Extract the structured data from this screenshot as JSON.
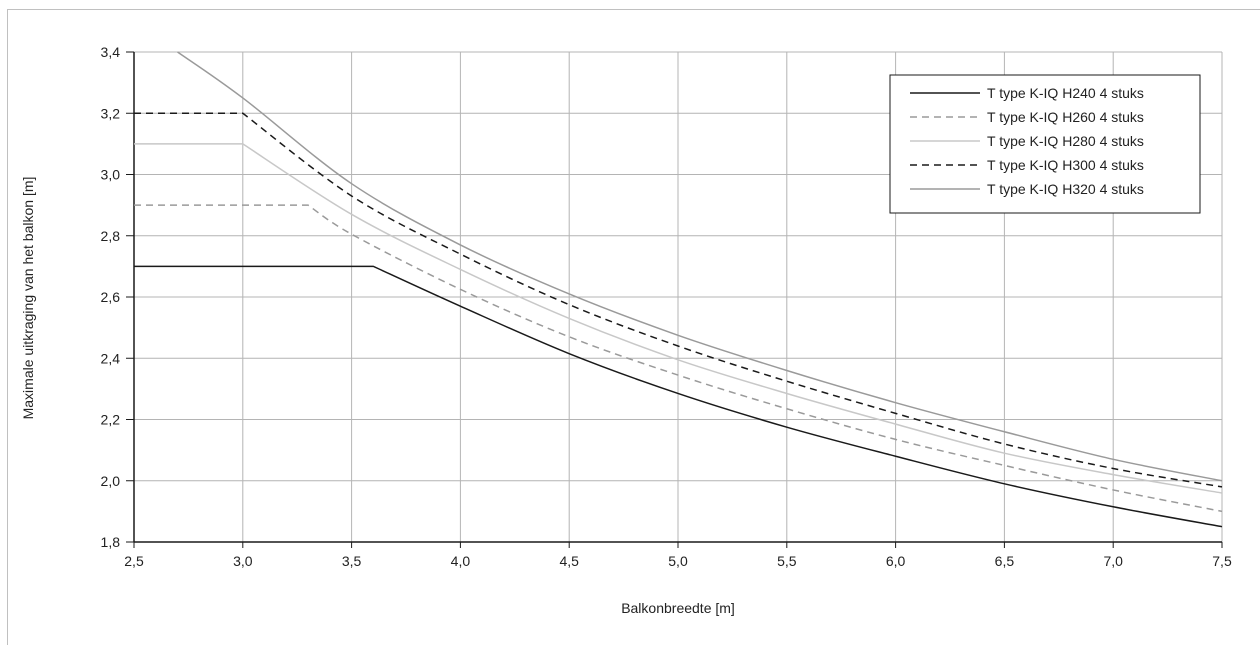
{
  "chart_data": {
    "type": "line",
    "title": "",
    "xlabel": "Balkonbreedte [m]",
    "ylabel": "Maximale uitkraging van het balkon [m]",
    "xlim": [
      2.5,
      7.5
    ],
    "ylim": [
      1.8,
      3.4
    ],
    "x_ticks": [
      "2,5",
      "3,0",
      "3,5",
      "4,0",
      "4,5",
      "5,0",
      "5,5",
      "6,0",
      "6,5",
      "7,0",
      "7,5"
    ],
    "y_ticks": [
      "1,8",
      "2,0",
      "2,2",
      "2,4",
      "2,6",
      "2,8",
      "3,0",
      "3,2",
      "3,4"
    ],
    "grid": true,
    "legend_position": "top-right",
    "series": [
      {
        "name": "T type K-IQ H240 4 stuks",
        "color": "#1a1a1a",
        "dash": "solid",
        "x": [
          2.5,
          3.6,
          4.0,
          4.5,
          5.0,
          5.5,
          6.0,
          6.5,
          7.0,
          7.5
        ],
        "y": [
          2.7,
          2.7,
          2.57,
          2.415,
          2.285,
          2.175,
          2.08,
          1.99,
          1.915,
          1.85
        ]
      },
      {
        "name": "T type K-IQ H260 4 stuks",
        "color": "#9a9a9a",
        "dash": "dashed",
        "x": [
          2.5,
          3.3,
          3.5,
          4.0,
          4.5,
          5.0,
          5.5,
          6.0,
          6.5,
          7.0,
          7.5
        ],
        "y": [
          2.9,
          2.9,
          2.805,
          2.625,
          2.47,
          2.345,
          2.235,
          2.135,
          2.05,
          1.97,
          1.9
        ]
      },
      {
        "name": "T type K-IQ H280 4 stuks",
        "color": "#c8c8c8",
        "dash": "solid",
        "x": [
          2.5,
          3.0,
          3.5,
          4.0,
          4.5,
          5.0,
          5.5,
          6.0,
          6.5,
          7.0,
          7.5
        ],
        "y": [
          3.1,
          3.1,
          2.87,
          2.69,
          2.53,
          2.395,
          2.285,
          2.185,
          2.09,
          2.02,
          1.96
        ]
      },
      {
        "name": "T type K-IQ H300 4 stuks",
        "color": "#1a1a1a",
        "dash": "dashed",
        "x": [
          2.5,
          3.0,
          3.5,
          4.0,
          4.5,
          5.0,
          5.5,
          6.0,
          6.5,
          7.0,
          7.5
        ],
        "y": [
          3.2,
          3.2,
          2.93,
          2.74,
          2.575,
          2.44,
          2.325,
          2.22,
          2.12,
          2.04,
          1.98
        ]
      },
      {
        "name": "T type K-IQ H320 4 stuks",
        "color": "#9a9a9a",
        "dash": "solid",
        "x": [
          2.7,
          3.0,
          3.5,
          4.0,
          4.5,
          5.0,
          5.5,
          6.0,
          6.5,
          7.0,
          7.5
        ],
        "y": [
          3.4,
          3.25,
          2.97,
          2.77,
          2.61,
          2.475,
          2.36,
          2.255,
          2.16,
          2.07,
          2.0
        ]
      }
    ]
  }
}
